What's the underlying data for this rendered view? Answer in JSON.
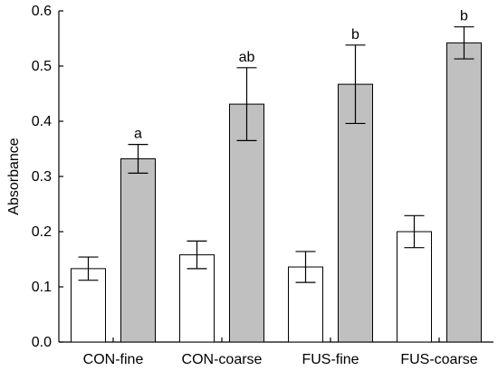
{
  "chart_data": {
    "type": "bar",
    "categories": [
      "CON-fine",
      "CON-coarse",
      "FUS-fine",
      "FUS-coarse"
    ],
    "series": [
      {
        "color": "#ffffff",
        "values": [
          0.133,
          0.158,
          0.136,
          0.2
        ],
        "errors": [
          0.021,
          0.025,
          0.028,
          0.029
        ]
      },
      {
        "color": "#c0c0c0",
        "values": [
          0.332,
          0.431,
          0.467,
          0.542
        ],
        "errors": [
          0.026,
          0.066,
          0.071,
          0.029
        ]
      }
    ],
    "significance_labels": [
      "a",
      "ab",
      "b",
      "b"
    ],
    "title": "",
    "xlabel": "",
    "ylabel": "Absorbance",
    "ylim": [
      0.0,
      0.6
    ],
    "yticks": [
      "0.0",
      "0.1",
      "0.2",
      "0.3",
      "0.4",
      "0.5",
      "0.6"
    ],
    "grid": false,
    "legend": "none"
  }
}
